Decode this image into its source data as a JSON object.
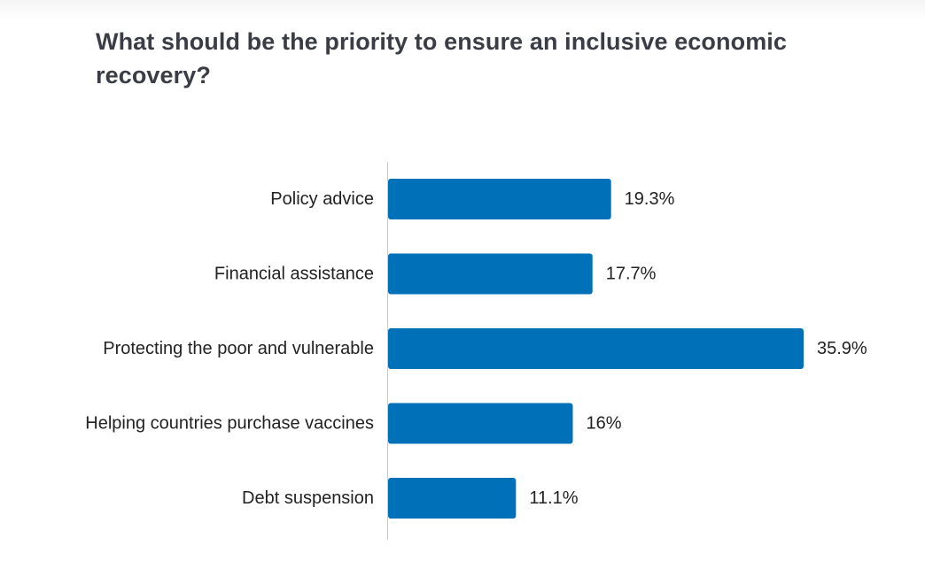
{
  "chart_data": {
    "type": "bar",
    "orientation": "horizontal",
    "title": "What should be the priority to ensure an inclusive economic recovery?",
    "categories": [
      "Policy advice",
      "Financial assistance",
      "Protecting the poor and vulnerable",
      "Helping countries purchase vaccines",
      "Debt suspension"
    ],
    "values": [
      19.3,
      17.7,
      35.9,
      16,
      11.1
    ],
    "value_labels": [
      "19.3%",
      "17.7%",
      "35.9%",
      "16%",
      "11.1%"
    ],
    "unit": "%",
    "xlim": [
      0,
      35.9
    ],
    "grid": false,
    "legend": "none",
    "bar_color": "#0070b8",
    "axis_color": "#cccccc"
  }
}
